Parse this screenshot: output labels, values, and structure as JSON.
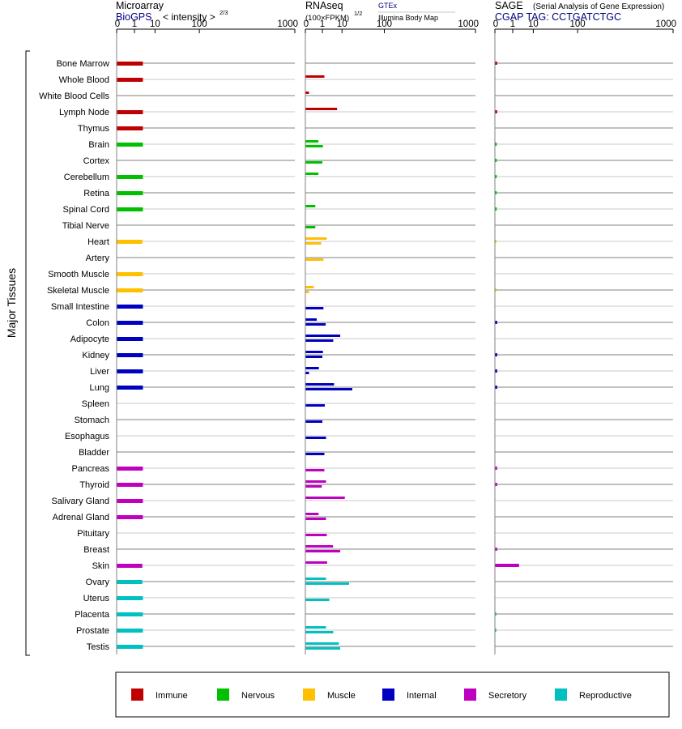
{
  "colors": {
    "immune": "#c00000",
    "nervous": "#00c000",
    "muscle": "#ffc000",
    "internal": "#0000c0",
    "secretory": "#c000c0",
    "reproductive": "#00c0c0",
    "text": "#000000",
    "link": "#000080",
    "grid_dark": "#808080",
    "grid_light": "#c8c8c8"
  },
  "panels": {
    "microarray": {
      "title": "Microarray",
      "subtitle_link": "BioGPS",
      "subtitle_text": "< intensity >",
      "exponent": "2/3"
    },
    "rnaseq": {
      "title": "RNAseq",
      "unit": "(100×FPKM)",
      "exponent": "1/2",
      "legend_top": "GTEx",
      "legend_bottom": "Illumina Body Map"
    },
    "sage": {
      "title": "SAGE",
      "description": "(Serial Analysis of Gene Expression)",
      "subtitle": "CGAP TAG: CCTGATCTGC"
    }
  },
  "y_group_label": "Major Tissues",
  "legend": [
    {
      "key": "immune",
      "label": "Immune"
    },
    {
      "key": "nervous",
      "label": "Nervous"
    },
    {
      "key": "muscle",
      "label": "Muscle"
    },
    {
      "key": "internal",
      "label": "Internal"
    },
    {
      "key": "secretory",
      "label": "Secretory"
    },
    {
      "key": "reproductive",
      "label": "Reproductive"
    }
  ],
  "chart_data": {
    "type": "bar",
    "orientation": "horizontal",
    "x_scale": "power",
    "x_ticks": [
      0,
      1,
      10,
      100,
      1000
    ],
    "xlim": [
      0,
      1000
    ],
    "grid": true,
    "legend_position": "bottom",
    "categories": [
      "Bone Marrow",
      "Whole Blood",
      "White Blood Cells",
      "Lymph Node",
      "Thymus",
      "Brain",
      "Cortex",
      "Cerebellum",
      "Retina",
      "Spinal Cord",
      "Tibial Nerve",
      "Heart",
      "Artery",
      "Smooth Muscle",
      "Skeletal Muscle",
      "Small Intestine",
      "Colon",
      "Adipocyte",
      "Kidney",
      "Liver",
      "Lung",
      "Spleen",
      "Stomach",
      "Esophagus",
      "Bladder",
      "Pancreas",
      "Thyroid",
      "Salivary Gland",
      "Adrenal Gland",
      "Pituitary",
      "Breast",
      "Skin",
      "Ovary",
      "Uterus",
      "Placenta",
      "Prostate",
      "Testis"
    ],
    "tissue_groups": [
      "immune",
      "immune",
      "immune",
      "immune",
      "immune",
      "nervous",
      "nervous",
      "nervous",
      "nervous",
      "nervous",
      "nervous",
      "muscle",
      "muscle",
      "muscle",
      "muscle",
      "internal",
      "internal",
      "internal",
      "internal",
      "internal",
      "internal",
      "internal",
      "internal",
      "internal",
      "internal",
      "secretory",
      "secretory",
      "secretory",
      "secretory",
      "secretory",
      "secretory",
      "secretory",
      "reproductive",
      "reproductive",
      "reproductive",
      "reproductive",
      "reproductive"
    ],
    "series": [
      {
        "panel": "microarray",
        "values": [
          3.2,
          3.2,
          null,
          3.2,
          3.2,
          3.2,
          null,
          3.2,
          3.2,
          3.2,
          null,
          3.0,
          null,
          3.2,
          3.2,
          3.2,
          3.2,
          3.2,
          3.2,
          3.2,
          3.2,
          null,
          null,
          null,
          null,
          3.2,
          3.2,
          3.2,
          3.2,
          null,
          null,
          3.0,
          3.0,
          3.2,
          3.2,
          3.2,
          3.2
        ]
      },
      {
        "panel": "rnaseq",
        "name": "GTEx",
        "values": [
          null,
          1.4,
          0.01,
          6.5,
          null,
          0.45,
          null,
          0.45,
          null,
          0.2,
          null,
          2.0,
          null,
          null,
          0.12,
          null,
          0.3,
          8.6,
          1.1,
          0.5,
          4.8,
          null,
          null,
          null,
          null,
          null,
          1.8,
          12.5,
          0.47,
          null,
          4.3,
          2.1,
          1.8,
          null,
          null,
          1.8,
          7.6
        ]
      },
      {
        "panel": "rnaseq",
        "name": "Illumina Body Map",
        "values": [
          null,
          null,
          null,
          null,
          null,
          1.1,
          1.0,
          null,
          null,
          null,
          0.2,
          0.8,
          1.2,
          null,
          0.01,
          1.2,
          1.7,
          4.4,
          1.0,
          0.01,
          21.0,
          1.5,
          1.0,
          1.8,
          1.4,
          1.4,
          0.9,
          null,
          1.8,
          2.0,
          8.6,
          null,
          17.0,
          2.8,
          null,
          4.4,
          8.6
        ]
      },
      {
        "panel": "sage",
        "values": [
          0.002,
          null,
          null,
          0.002,
          null,
          0.001,
          0.001,
          0.001,
          0.001,
          0.001,
          null,
          0.0005,
          null,
          null,
          0.0005,
          null,
          0.002,
          null,
          0.002,
          0.002,
          0.002,
          null,
          null,
          null,
          null,
          0.002,
          0.002,
          null,
          null,
          null,
          0.002,
          2.5,
          null,
          null,
          0.0005,
          0.0005,
          null
        ]
      }
    ]
  }
}
